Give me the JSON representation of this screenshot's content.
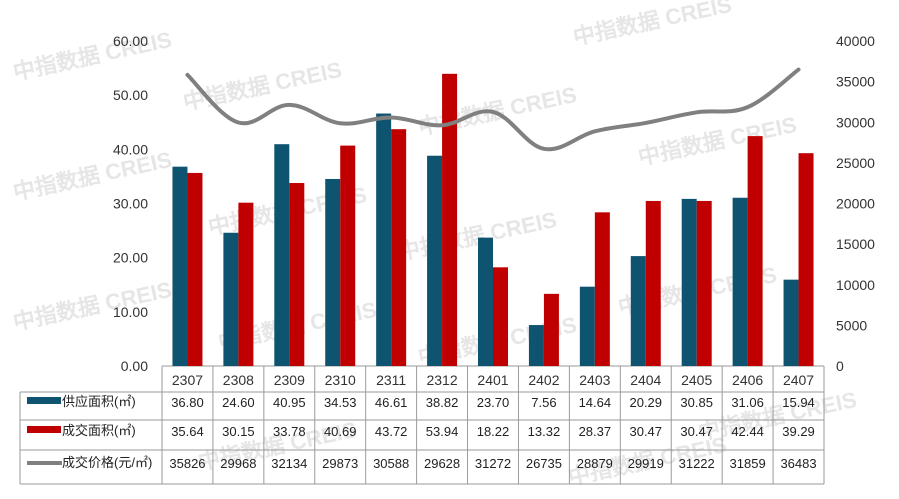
{
  "chart_data": {
    "type": "bar",
    "categories": [
      "2307",
      "2308",
      "2309",
      "2310",
      "2311",
      "2312",
      "2401",
      "2402",
      "2403",
      "2404",
      "2405",
      "2406",
      "2407"
    ],
    "series": [
      {
        "name": "供应面积(㎡)",
        "type": "bar",
        "axis": "left",
        "color": "#0e5470",
        "values": [
          36.8,
          24.6,
          40.95,
          34.53,
          46.61,
          38.82,
          23.7,
          7.56,
          14.64,
          20.29,
          30.85,
          31.06,
          15.94
        ]
      },
      {
        "name": "成交面积(㎡)",
        "type": "bar",
        "axis": "left",
        "color": "#c00000",
        "values": [
          35.64,
          30.15,
          33.78,
          40.69,
          43.72,
          53.94,
          18.22,
          13.32,
          28.37,
          30.47,
          30.47,
          42.44,
          39.29
        ]
      },
      {
        "name": "成交价格(元/㎡)",
        "type": "line",
        "axis": "right",
        "color": "#808080",
        "values": [
          35826,
          29968,
          32134,
          29873,
          30588,
          29628,
          31272,
          26735,
          28879,
          29919,
          31222,
          31859,
          36483
        ]
      }
    ],
    "y_left": {
      "range": [
        0,
        60
      ],
      "ticks": [
        "0.00",
        "10.00",
        "20.00",
        "30.00",
        "40.00",
        "50.00",
        "60.00"
      ]
    },
    "y_right": {
      "range": [
        0,
        40000
      ],
      "ticks": [
        "0",
        "5000",
        "10000",
        "15000",
        "20000",
        "25000",
        "30000",
        "35000",
        "40000"
      ]
    },
    "table_rows": {
      "supply": [
        "36.80",
        "24.60",
        "40.95",
        "34.53",
        "46.61",
        "38.82",
        "23.70",
        "7.56",
        "14.64",
        "20.29",
        "30.85",
        "31.06",
        "15.94"
      ],
      "deal": [
        "35.64",
        "30.15",
        "33.78",
        "40.69",
        "43.72",
        "53.94",
        "18.22",
        "13.32",
        "28.37",
        "30.47",
        "30.47",
        "42.44",
        "39.29"
      ],
      "price": [
        "35826",
        "29968",
        "32134",
        "29873",
        "30588",
        "29628",
        "31272",
        "26735",
        "28879",
        "29919",
        "31222",
        "31859",
        "36483"
      ]
    },
    "watermark": "中指数据 CREIS"
  }
}
